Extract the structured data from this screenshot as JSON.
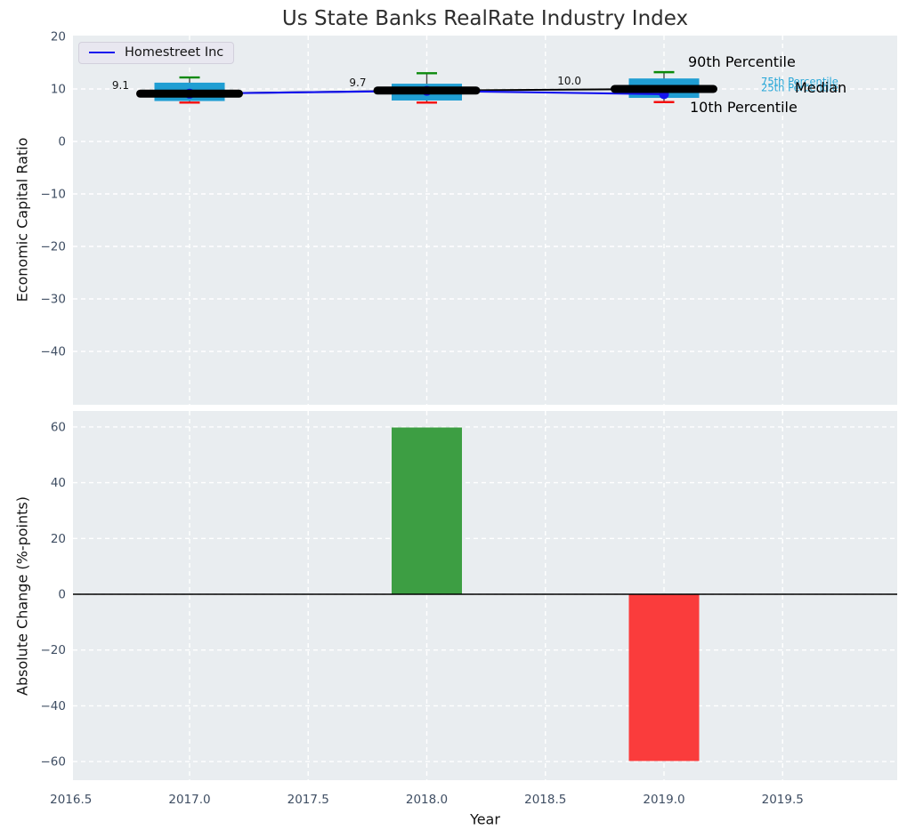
{
  "chart_data": [
    {
      "type": "boxplot-line",
      "title": "Us State Banks RealRate Industry Index",
      "ylabel": "Economic Capital Ratio",
      "grid": true,
      "xlim": [
        2016.51,
        2019.98
      ],
      "ylim": [
        -50.2,
        20.2
      ],
      "yticks": [
        20,
        10,
        0,
        -10,
        -20,
        -30,
        -40
      ],
      "ytick_labels": [
        "20",
        "10",
        "0",
        "−10",
        "−20",
        "−30",
        "−40"
      ],
      "xticks": [
        2016.5,
        2017.0,
        2017.5,
        2018.0,
        2018.5,
        2019.0,
        2019.5
      ],
      "legend": {
        "position": "upper-left",
        "entries": [
          {
            "label": "Homestreet Inc",
            "color": "#1414ee"
          }
        ]
      },
      "boxes": [
        {
          "year": 2017,
          "p10": 7.4,
          "q1": 7.7,
          "median": 9.1,
          "q3": 11.2,
          "p90": 12.2
        },
        {
          "year": 2018,
          "p10": 7.4,
          "q1": 7.8,
          "median": 9.7,
          "q3": 11.0,
          "p90": 13.0
        },
        {
          "year": 2019,
          "p10": 7.5,
          "q1": 8.3,
          "median": 10.0,
          "q3": 12.0,
          "p90": 13.2
        }
      ],
      "median_line": {
        "values": [
          9.1,
          9.7,
          10.0
        ],
        "labels": [
          "9.1",
          "9.7",
          "10.0"
        ],
        "color": "#000000"
      },
      "series": [
        {
          "name": "Homestreet Inc",
          "x": [
            2017,
            2018,
            2019
          ],
          "values": [
            9.1,
            9.65,
            9.0
          ],
          "color": "#1414ee"
        }
      ],
      "annotations": [
        {
          "text": "90th Percentile",
          "color": "#000000"
        },
        {
          "text": "75th Percentile",
          "color": "#29a8d8"
        },
        {
          "text": "25th Percentile",
          "color": "#29a8d8"
        },
        {
          "text": "Median",
          "color": "#000000"
        },
        {
          "text": "10th Percentile",
          "color": "#000000"
        }
      ],
      "colors": {
        "box_fill": "#209ed3",
        "whisker": "#4d4d4d",
        "cap_top": "#0b8a0b",
        "cap_bottom": "#f40d0d",
        "median": "#000000",
        "axes_bg": "#e9edf0",
        "grid": "#ffffff",
        "tick": "#3f4e63"
      }
    },
    {
      "type": "bar",
      "xlabel": "Year",
      "ylabel": "Absolute Change (%-points)",
      "grid": true,
      "categories": [
        2018,
        2019
      ],
      "values": [
        59.8,
        -59.8
      ],
      "bar_colors": [
        "#3d9e43",
        "#fa3c3c"
      ],
      "yticks": [
        60,
        40,
        20,
        0,
        -20,
        -40,
        -60
      ],
      "ytick_labels": [
        "60",
        "40",
        "20",
        "0",
        "−20",
        "−40",
        "−60"
      ],
      "xticks": [
        2016.5,
        2017.0,
        2017.5,
        2018.0,
        2018.5,
        2019.0,
        2019.5
      ],
      "xtick_labels": [
        "2016.5",
        "2017.0",
        "2017.5",
        "2018.0",
        "2018.5",
        "2019.0",
        "2019.5"
      ],
      "zero_line": true,
      "ylim": [
        -67,
        66
      ]
    }
  ]
}
